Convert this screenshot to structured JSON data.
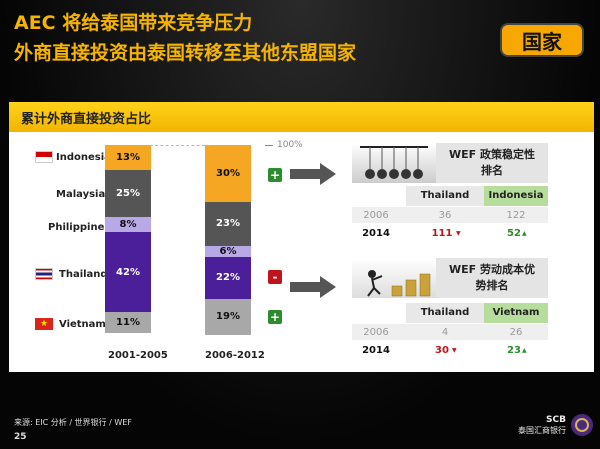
{
  "header": {
    "title_line1": "AEC 将给泰国带来竞争压力",
    "title_line2": "外商直接投资由泰国转移至其他东盟国家",
    "badge": "国家"
  },
  "panel": {
    "title": "累计外商直接投资占比",
    "marker_100": "100%"
  },
  "chart_data": {
    "type": "bar",
    "stacked": true,
    "categories": [
      "2001-2005",
      "2006-2012"
    ],
    "series": [
      {
        "name": "Indonesia",
        "values": [
          13,
          30
        ],
        "labels": [
          "13%",
          "30%"
        ],
        "color": "#f5a623"
      },
      {
        "name": "Malaysia",
        "values": [
          25,
          23
        ],
        "labels": [
          "25%",
          "23%"
        ],
        "color": "#555555"
      },
      {
        "name": "Philippines",
        "values": [
          8,
          6
        ],
        "labels": [
          "8%",
          "6%"
        ],
        "color": "#b9a8e6"
      },
      {
        "name": "Thailand",
        "values": [
          42,
          22
        ],
        "labels": [
          "42%",
          "22%"
        ],
        "color": "#4b1f9a"
      },
      {
        "name": "Vietnam",
        "values": [
          11,
          19
        ],
        "labels": [
          "11%",
          "19%"
        ],
        "color": "#a8a8a8"
      }
    ],
    "change_signs": [
      "+",
      "",
      "",
      "-",
      "+"
    ]
  },
  "countries": [
    {
      "name": "Indonesia",
      "flag": "indonesia-flag"
    },
    {
      "name": "Malaysia",
      "flag": ""
    },
    {
      "name": "Philippines",
      "flag": ""
    },
    {
      "name": "Thailand",
      "flag": "thailand-flag"
    },
    {
      "name": "Vietnam",
      "flag": "vietnam-flag"
    }
  ],
  "table1": {
    "title": "WEF 政策稳定性排名",
    "col1": "Thailand",
    "col2": "Indonesia",
    "rows": [
      {
        "year": "2006",
        "v1": "36",
        "v2": "122"
      },
      {
        "year": "2014",
        "v1": "111",
        "v2": "52"
      }
    ]
  },
  "table2": {
    "title": "WEF 劳动成本优势排名",
    "col1": "Thailand",
    "col2": "Vietnam",
    "rows": [
      {
        "year": "2006",
        "v1": "4",
        "v2": "26"
      },
      {
        "year": "2014",
        "v1": "30",
        "v2": "23"
      }
    ]
  },
  "footer": {
    "source": "来源: EIC 分析 / 世界银行 / WEF",
    "page": "25",
    "logo_text": "SCB",
    "logo_sub": "泰国汇商银行"
  }
}
